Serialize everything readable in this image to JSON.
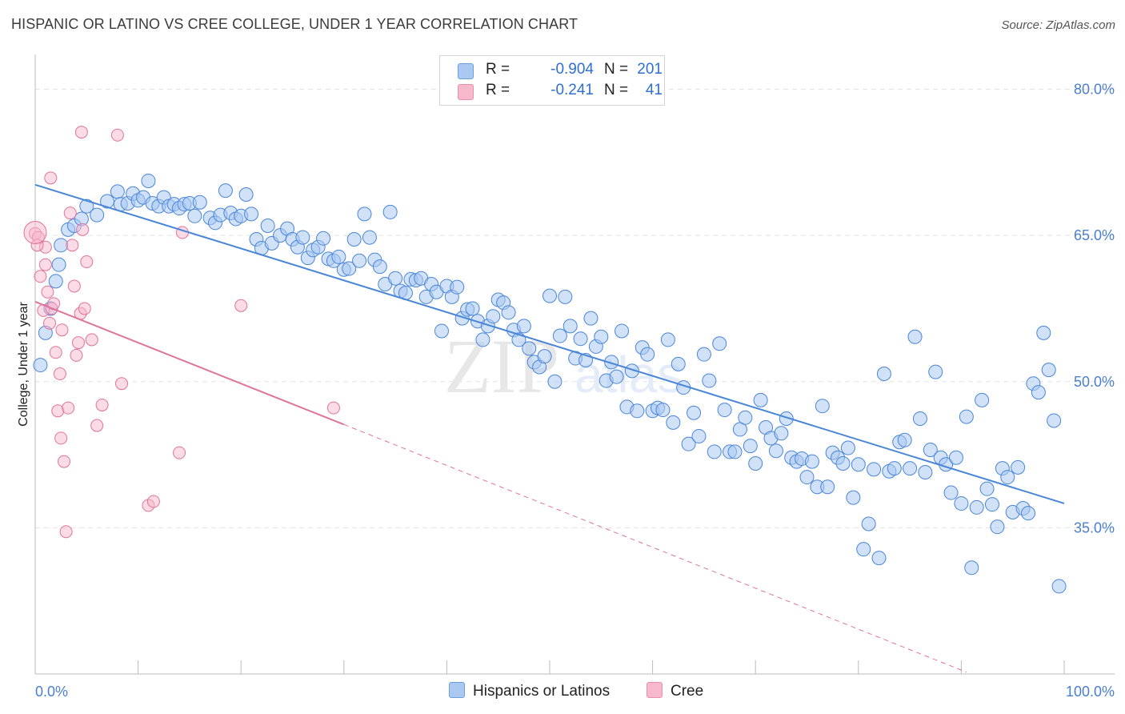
{
  "title": "HISPANIC OR LATINO VS CREE COLLEGE, UNDER 1 YEAR CORRELATION CHART",
  "source": "Source: ZipAtlas.com",
  "watermark": "ZIPatlas",
  "legend": {
    "rows": [
      {
        "r_label": "R =",
        "r_value": "-0.904",
        "n_label": "N =",
        "n_value": "201",
        "color": "#aac8f2",
        "border": "#6a9fe0"
      },
      {
        "r_label": "R =",
        "r_value": "-0.241",
        "n_label": "N =",
        "n_value": "41",
        "color": "#f7b8cc",
        "border": "#e890ac"
      }
    ]
  },
  "bottom_legend": [
    {
      "label": "Hispanics or Latinos",
      "color": "#aac8f2",
      "border": "#6a9fe0"
    },
    {
      "label": "Cree",
      "color": "#f7b8cc",
      "border": "#e890ac"
    }
  ],
  "chart_data": {
    "type": "scatter",
    "title": "HISPANIC OR LATINO VS CREE COLLEGE, UNDER 1 YEAR CORRELATION CHART",
    "xlabel": "",
    "ylabel": "College, Under 1 year",
    "xlim": [
      0,
      100
    ],
    "ylim": [
      20,
      83
    ],
    "x_tick_labels": [
      "0.0%",
      "100.0%"
    ],
    "y_ticks": [
      35,
      50,
      65,
      80
    ],
    "y_tick_labels": [
      "35.0%",
      "50.0%",
      "65.0%",
      "80.0%"
    ],
    "grid": true,
    "series": [
      {
        "name": "Hispanics or Latinos",
        "color": "#4a86d8",
        "fill": "#aac8f2",
        "trend": {
          "x0": 0,
          "y0": 70.2,
          "x1": 100,
          "y1": 37.5,
          "dashed_to": 100
        },
        "points": [
          [
            0.5,
            51.7
          ],
          [
            1,
            55
          ],
          [
            1.5,
            57.5
          ],
          [
            2,
            60.3
          ],
          [
            2.3,
            62
          ],
          [
            2.5,
            64
          ],
          [
            3.2,
            65.6
          ],
          [
            3.8,
            66
          ],
          [
            4.5,
            66.7
          ],
          [
            5,
            68
          ],
          [
            6,
            67.1
          ],
          [
            7,
            68.5
          ],
          [
            8,
            69.5
          ],
          [
            8.3,
            68.2
          ],
          [
            9,
            68.3
          ],
          [
            9.5,
            69.3
          ],
          [
            10,
            68.6
          ],
          [
            10.5,
            68.9
          ],
          [
            11,
            70.6
          ],
          [
            11.4,
            68.3
          ],
          [
            12,
            68
          ],
          [
            12.5,
            68.9
          ],
          [
            13,
            68
          ],
          [
            13.5,
            68.2
          ],
          [
            14,
            67.8
          ],
          [
            14.5,
            68.2
          ],
          [
            15,
            68.3
          ],
          [
            15.5,
            67
          ],
          [
            16,
            68.4
          ],
          [
            17,
            66.8
          ],
          [
            17.5,
            66.3
          ],
          [
            18,
            67.1
          ],
          [
            18.5,
            69.6
          ],
          [
            19,
            67.3
          ],
          [
            19.5,
            66.7
          ],
          [
            20,
            67
          ],
          [
            20.5,
            69.2
          ],
          [
            21,
            67.2
          ],
          [
            21.5,
            64.6
          ],
          [
            22,
            63.7
          ],
          [
            22.6,
            66
          ],
          [
            23,
            64.2
          ],
          [
            23.8,
            65
          ],
          [
            24.5,
            65.7
          ],
          [
            25,
            64.6
          ],
          [
            25.5,
            63.8
          ],
          [
            26,
            64.8
          ],
          [
            26.5,
            62.7
          ],
          [
            27,
            63.5
          ],
          [
            27.5,
            63.8
          ],
          [
            28,
            64.7
          ],
          [
            28.5,
            62.6
          ],
          [
            29,
            62.4
          ],
          [
            29.5,
            62.8
          ],
          [
            30,
            61.5
          ],
          [
            30.5,
            61.6
          ],
          [
            31,
            64.6
          ],
          [
            31.5,
            62.4
          ],
          [
            32,
            67.2
          ],
          [
            32.5,
            64.8
          ],
          [
            33,
            62.5
          ],
          [
            33.5,
            61.8
          ],
          [
            34,
            60
          ],
          [
            34.5,
            67.4
          ],
          [
            35,
            60.6
          ],
          [
            35.5,
            59.3
          ],
          [
            36,
            59.1
          ],
          [
            36.5,
            60.5
          ],
          [
            37,
            60.4
          ],
          [
            37.5,
            60.6
          ],
          [
            38,
            58.7
          ],
          [
            38.5,
            60
          ],
          [
            39,
            59.2
          ],
          [
            39.5,
            55.2
          ],
          [
            40,
            59.8
          ],
          [
            40.5,
            58.7
          ],
          [
            41,
            59.7
          ],
          [
            41.5,
            56.5
          ],
          [
            42,
            57.4
          ],
          [
            42.5,
            57.5
          ],
          [
            43,
            56.2
          ],
          [
            43.5,
            54.3
          ],
          [
            44,
            55.7
          ],
          [
            44.5,
            56.7
          ],
          [
            45,
            58.4
          ],
          [
            45.5,
            58.1
          ],
          [
            46,
            57.1
          ],
          [
            46.5,
            55.3
          ],
          [
            47,
            54.3
          ],
          [
            47.5,
            55.7
          ],
          [
            48,
            53.4
          ],
          [
            48.5,
            52
          ],
          [
            49,
            51.5
          ],
          [
            49.5,
            52.6
          ],
          [
            50,
            58.8
          ],
          [
            50.5,
            50
          ],
          [
            51,
            54.7
          ],
          [
            51.5,
            58.7
          ],
          [
            52,
            55.7
          ],
          [
            52.5,
            52.4
          ],
          [
            53,
            54.4
          ],
          [
            53.5,
            52.2
          ],
          [
            54,
            56.5
          ],
          [
            54.5,
            53.6
          ],
          [
            55,
            54.6
          ],
          [
            55.5,
            50.1
          ],
          [
            56,
            52
          ],
          [
            56.5,
            50.5
          ],
          [
            57,
            55.2
          ],
          [
            57.5,
            47.4
          ],
          [
            58,
            51.1
          ],
          [
            58.5,
            47
          ],
          [
            59,
            53.5
          ],
          [
            59.5,
            52.8
          ],
          [
            60,
            47
          ],
          [
            60.5,
            47.3
          ],
          [
            61,
            47.1
          ],
          [
            61.5,
            54.3
          ],
          [
            62,
            45.8
          ],
          [
            62.5,
            51.8
          ],
          [
            63,
            49.4
          ],
          [
            63.5,
            43.6
          ],
          [
            64,
            46.8
          ],
          [
            64.5,
            44.4
          ],
          [
            65,
            52.8
          ],
          [
            65.5,
            50.1
          ],
          [
            66,
            42.8
          ],
          [
            66.5,
            53.9
          ],
          [
            67,
            47.1
          ],
          [
            67.5,
            42.8
          ],
          [
            68,
            42.8
          ],
          [
            68.5,
            45.1
          ],
          [
            69,
            46.3
          ],
          [
            69.5,
            43.4
          ],
          [
            70,
            41.6
          ],
          [
            70.5,
            48.1
          ],
          [
            71,
            45.3
          ],
          [
            71.5,
            44.2
          ],
          [
            72,
            42.9
          ],
          [
            72.5,
            44.7
          ],
          [
            73,
            46.2
          ],
          [
            73.5,
            42.2
          ],
          [
            74,
            41.8
          ],
          [
            74.5,
            42.1
          ],
          [
            75,
            40.2
          ],
          [
            75.5,
            41.8
          ],
          [
            76,
            39.2
          ],
          [
            76.5,
            47.5
          ],
          [
            77,
            39.2
          ],
          [
            77.5,
            42.7
          ],
          [
            78,
            42.2
          ],
          [
            78.5,
            41.6
          ],
          [
            79,
            43.2
          ],
          [
            79.5,
            38.1
          ],
          [
            80,
            41.5
          ],
          [
            80.5,
            32.8
          ],
          [
            81,
            35.4
          ],
          [
            81.5,
            41
          ],
          [
            82,
            31.9
          ],
          [
            82.5,
            50.8
          ],
          [
            83,
            40.8
          ],
          [
            83.5,
            41.1
          ],
          [
            84,
            43.8
          ],
          [
            84.5,
            44
          ],
          [
            85,
            41.1
          ],
          [
            85.5,
            54.6
          ],
          [
            86,
            46.2
          ],
          [
            86.5,
            40.7
          ],
          [
            87,
            43
          ],
          [
            87.5,
            51
          ],
          [
            88,
            42.2
          ],
          [
            88.5,
            41.5
          ],
          [
            89,
            38.6
          ],
          [
            89.5,
            42.2
          ],
          [
            90,
            37.5
          ],
          [
            90.5,
            46.4
          ],
          [
            91,
            30.9
          ],
          [
            91.5,
            37.1
          ],
          [
            92,
            48.1
          ],
          [
            92.5,
            39
          ],
          [
            93,
            37.4
          ],
          [
            93.5,
            35.1
          ],
          [
            94,
            41.1
          ],
          [
            94.5,
            40.2
          ],
          [
            95,
            36.6
          ],
          [
            95.5,
            41.2
          ],
          [
            96,
            37
          ],
          [
            96.5,
            36.5
          ],
          [
            97,
            49.8
          ],
          [
            97.5,
            48.9
          ],
          [
            98,
            55
          ],
          [
            98.5,
            51.2
          ],
          [
            99,
            46
          ],
          [
            99.5,
            29
          ]
        ]
      },
      {
        "name": "Cree",
        "color": "#e0739a",
        "fill": "#f7b8cc",
        "trend": {
          "x0": 0,
          "y0": 58.2,
          "x1": 30,
          "y1": 45.6,
          "dashed_to": 100
        },
        "points": [
          [
            0,
            65.2
          ],
          [
            0.3,
            64.8
          ],
          [
            0.5,
            60.8
          ],
          [
            0.8,
            57.3
          ],
          [
            1,
            63.8
          ],
          [
            1.2,
            59.2
          ],
          [
            1.4,
            56
          ],
          [
            1.6,
            57.5
          ],
          [
            1.8,
            58
          ],
          [
            2,
            53
          ],
          [
            2.2,
            47
          ],
          [
            2.4,
            50.8
          ],
          [
            2.6,
            55.3
          ],
          [
            2.8,
            41.8
          ],
          [
            3,
            34.6
          ],
          [
            3.2,
            47.3
          ],
          [
            3.4,
            67.3
          ],
          [
            3.6,
            64
          ],
          [
            3.8,
            59.8
          ],
          [
            4,
            52.7
          ],
          [
            4.2,
            54
          ],
          [
            4.4,
            57
          ],
          [
            4.6,
            65.6
          ],
          [
            4.8,
            57.5
          ],
          [
            5,
            62.3
          ],
          [
            5.5,
            54.3
          ],
          [
            6,
            45.5
          ],
          [
            6.5,
            47.6
          ],
          [
            1.5,
            70.9
          ],
          [
            4.5,
            75.6
          ],
          [
            8,
            75.3
          ],
          [
            8.4,
            49.8
          ],
          [
            11,
            37.3
          ],
          [
            11.5,
            37.7
          ],
          [
            14,
            42.7
          ],
          [
            14.3,
            65.3
          ],
          [
            20,
            57.8
          ],
          [
            29,
            47.3
          ],
          [
            2.5,
            44.2
          ],
          [
            0.2,
            64
          ],
          [
            1,
            62
          ]
        ]
      }
    ]
  }
}
